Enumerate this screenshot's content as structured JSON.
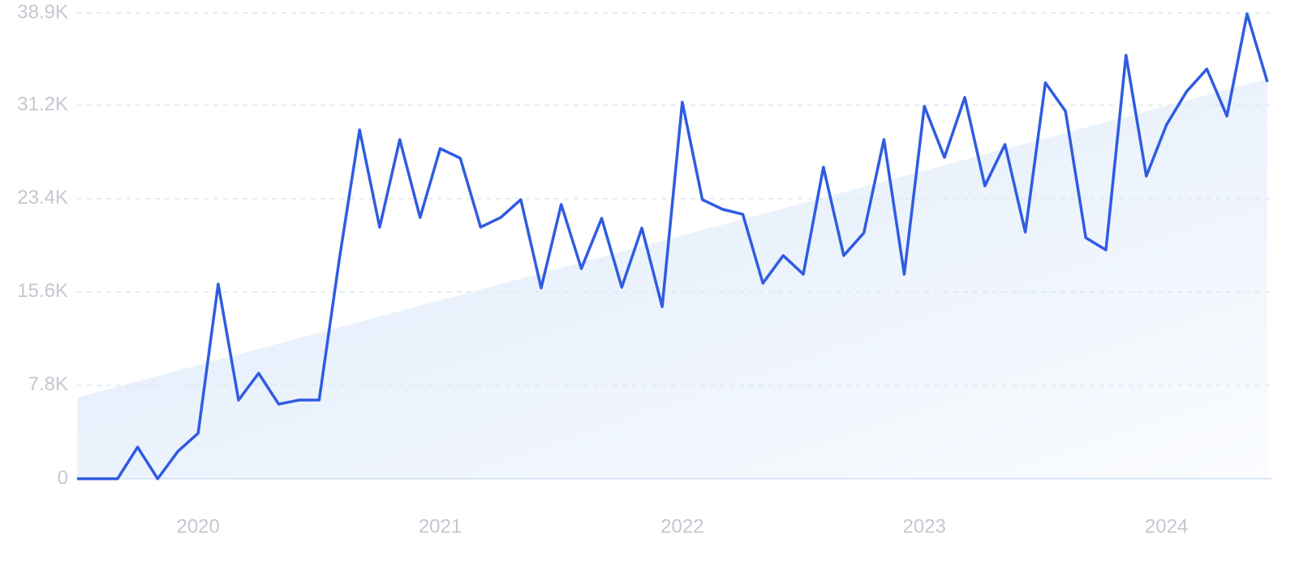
{
  "chart_data": {
    "type": "line",
    "x": [
      2019.5,
      2019.583,
      2019.667,
      2019.75,
      2019.833,
      2019.917,
      2020.0,
      2020.083,
      2020.167,
      2020.25,
      2020.333,
      2020.417,
      2020.5,
      2020.583,
      2020.667,
      2020.75,
      2020.833,
      2020.917,
      2021.0,
      2021.083,
      2021.167,
      2021.25,
      2021.333,
      2021.417,
      2021.5,
      2021.583,
      2021.667,
      2021.75,
      2021.833,
      2021.917,
      2022.0,
      2022.083,
      2022.167,
      2022.25,
      2022.333,
      2022.417,
      2022.5,
      2022.583,
      2022.667,
      2022.75,
      2022.833,
      2022.917,
      2023.0,
      2023.083,
      2023.167,
      2023.25,
      2023.333,
      2023.417,
      2023.5,
      2023.583,
      2023.667,
      2023.75,
      2023.833,
      2023.917,
      2024.0,
      2024.083,
      2024.167,
      2024.25,
      2024.333,
      2024.417
    ],
    "series": [
      {
        "color": "#2f5ce1",
        "values": [
          0,
          0,
          0,
          2640,
          0,
          2300,
          3800,
          16260,
          6570,
          8810,
          6230,
          6570,
          6570,
          18300,
          29140,
          21010,
          28330,
          21820,
          27580,
          26770,
          21010,
          21820,
          23310,
          15930,
          22910,
          17550,
          21750,
          15990,
          20940,
          14370,
          31450,
          23310,
          22500,
          22090,
          16330,
          18640,
          17080,
          26020,
          18640,
          20530,
          28330,
          17080,
          31110,
          26840,
          31850,
          24460,
          27920,
          20600,
          33070,
          30700,
          20130,
          19110,
          35370,
          25280,
          29550,
          32330,
          34220,
          30290,
          38830,
          33140
        ]
      }
    ],
    "trend": {
      "start": 6780,
      "end": 33410,
      "color": "#dde9fa"
    },
    "xlim": [
      2019.5,
      2024.417
    ],
    "xticks": [
      2020,
      2021,
      2022,
      2023,
      2024
    ],
    "ylim": [
      0,
      38900
    ],
    "yticks": [
      0,
      {
        "value": 7800,
        "label": "7.8K"
      },
      {
        "value": 15600,
        "label": "15.6K"
      },
      {
        "value": 23400,
        "label": "23.4K"
      },
      {
        "value": 31200,
        "label": "31.2K"
      },
      {
        "value": 38900,
        "label": "38.9K"
      }
    ],
    "grid": true
  }
}
